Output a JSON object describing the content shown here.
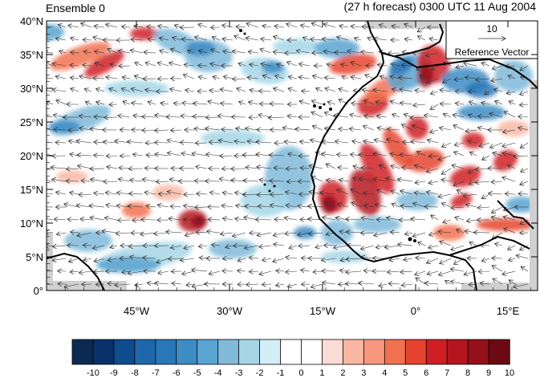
{
  "header": {
    "left_title": "Ensemble 0",
    "right_title": "(27 h forecast) 0300 UTC 11 Aug 2004"
  },
  "axes": {
    "lat_labels": [
      "40°N",
      "35°N",
      "30°N",
      "25°N",
      "20°N",
      "15°N",
      "10°N",
      "5°N",
      "0°"
    ],
    "lon_labels": [
      "45°W",
      "30°W",
      "15°W",
      "0°",
      "15°E"
    ]
  },
  "reference_vector": {
    "magnitude_label": "10",
    "caption": "Reference Vector"
  },
  "colorbar": {
    "labels": [
      "-10",
      "-9",
      "-8",
      "-7",
      "-6",
      "-5",
      "-4",
      "-3",
      "-2",
      "-1",
      "0",
      "1",
      "2",
      "3",
      "4",
      "5",
      "6",
      "7",
      "8",
      "9",
      "10"
    ],
    "colors": [
      "#0b2a52",
      "#08306b",
      "#0f4c8c",
      "#1f67ab",
      "#2a77b7",
      "#3d8cc4",
      "#5aa4d1",
      "#7fbad9",
      "#a6d6e6",
      "#d3eef6",
      "#ffffff",
      "#ffffff",
      "#fcdcd6",
      "#f9b7a3",
      "#f7987e",
      "#f2714f",
      "#e64430",
      "#cf1f24",
      "#b4151f",
      "#95101b",
      "#6b0a12"
    ]
  },
  "colors": {
    "land_outline": "#000000",
    "frame": "#000000",
    "vector": "#333333",
    "missing": "#d0d0d0"
  }
}
